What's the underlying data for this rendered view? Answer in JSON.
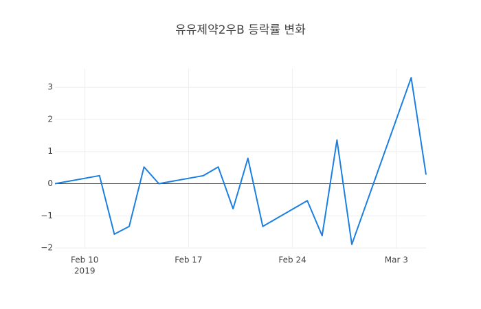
{
  "chart_data": {
    "type": "line",
    "title": "유유제약2우B 등락률 변화",
    "x": [
      "2019-02-08",
      "2019-02-11",
      "2019-02-12",
      "2019-02-13",
      "2019-02-14",
      "2019-02-15",
      "2019-02-18",
      "2019-02-19",
      "2019-02-20",
      "2019-02-21",
      "2019-02-22",
      "2019-02-25",
      "2019-02-26",
      "2019-02-27",
      "2019-02-28",
      "2019-03-04",
      "2019-03-05"
    ],
    "values": [
      0,
      0.25,
      -1.57,
      -1.33,
      0.52,
      0,
      0.25,
      0.52,
      -0.78,
      0.79,
      -1.33,
      -0.53,
      -1.62,
      1.36,
      -1.89,
      3.3,
      0.28
    ],
    "color": "#1a7fe0",
    "xlim": [
      "2019-02-08",
      "2019-03-05"
    ],
    "xticks": [
      {
        "value": "2019-02-10",
        "label": "Feb 10",
        "sublabel": "2019"
      },
      {
        "value": "2019-02-17",
        "label": "Feb 17"
      },
      {
        "value": "2019-02-24",
        "label": "Feb 24"
      },
      {
        "value": "2019-03-03",
        "label": "Mar 3"
      }
    ],
    "ylim": [
      -2.02,
      3.58
    ],
    "yticks": [
      {
        "value": -2,
        "label": "−2"
      },
      {
        "value": -1,
        "label": "−1"
      },
      0,
      1,
      2,
      3
    ],
    "grid": true,
    "zeroline": true
  }
}
